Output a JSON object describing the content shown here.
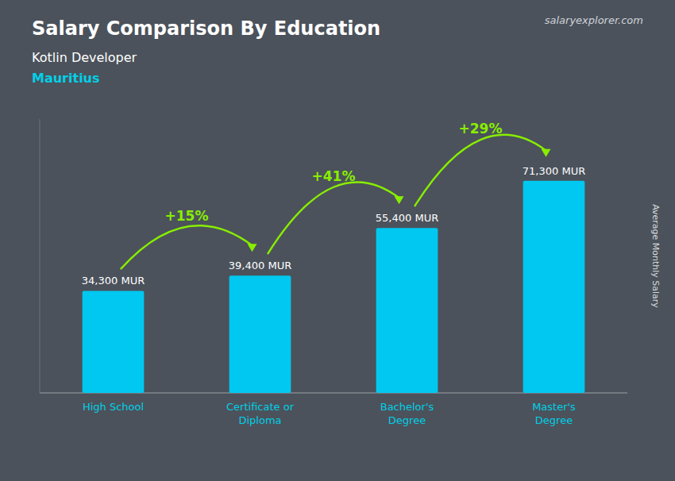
{
  "chart_data": {
    "type": "bar",
    "title": "Salary Comparison By Education",
    "subtitle": "Kotlin Developer",
    "location": "Mauritius",
    "source": "salaryexplorer.com",
    "ylabel": "Average Monthly Salary",
    "categories": [
      "High School",
      "Certificate or\nDiploma",
      "Bachelor's\nDegree",
      "Master's\nDegree"
    ],
    "values": [
      34300,
      39400,
      55400,
      71300
    ],
    "value_labels": [
      "34,300 MUR",
      "39,400 MUR",
      "55,400 MUR",
      "71,300 MUR"
    ],
    "data_labels": true,
    "annotations": [
      {
        "text": "+15%",
        "color": "#88ee00"
      },
      {
        "text": "+41%",
        "color": "#88ee00"
      },
      {
        "text": "+29%",
        "color": "#88ee00"
      }
    ],
    "color": "#00c8f0",
    "ylim": [
      0,
      92000
    ],
    "tick_labels": "x",
    "grid": false
  }
}
